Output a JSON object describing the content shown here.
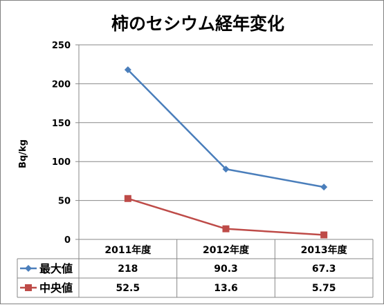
{
  "chart_data": {
    "type": "line",
    "title": "柿のセシウム経年変化",
    "ylabel": "Bq/kg",
    "xlabel": "",
    "categories": [
      "2011年度",
      "2012年度",
      "2013年度"
    ],
    "ylim": [
      0,
      250
    ],
    "yticks": [
      0,
      50,
      100,
      150,
      200,
      250
    ],
    "grid": true,
    "legend": "data-table-left",
    "series": [
      {
        "name": "最大値",
        "values": [
          218,
          90.3,
          67.3
        ],
        "labels": [
          "218",
          "90.3",
          "67.3"
        ],
        "color": "#4a7ebb",
        "marker": "diamond"
      },
      {
        "name": "中央値",
        "values": [
          52.5,
          13.6,
          5.75
        ],
        "labels": [
          "52.5",
          "13.6",
          "5.75"
        ],
        "color": "#be4b48",
        "marker": "square"
      }
    ]
  }
}
